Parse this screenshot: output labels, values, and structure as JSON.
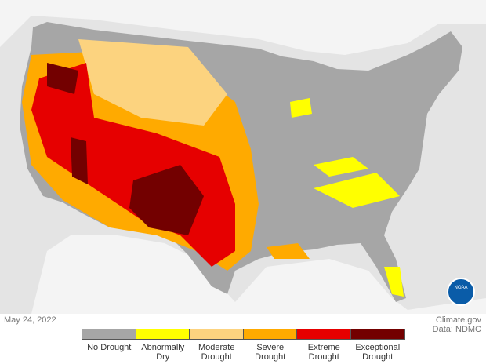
{
  "date": "May 24, 2022",
  "credits": [
    "Climate.gov",
    "Data: NDMC"
  ],
  "logo": "NOAA",
  "legend": [
    {
      "label": "No Drought",
      "color": "#a6a6a6"
    },
    {
      "label": "Abnormally Dry",
      "color": "#ffff00"
    },
    {
      "label": "Moderate Drought",
      "color": "#fcd37f"
    },
    {
      "label": "Severe Drought",
      "color": "#ffaa00"
    },
    {
      "label": "Extreme Drought",
      "color": "#e60000"
    },
    {
      "label": "Exceptional Drought",
      "color": "#730000"
    }
  ]
}
